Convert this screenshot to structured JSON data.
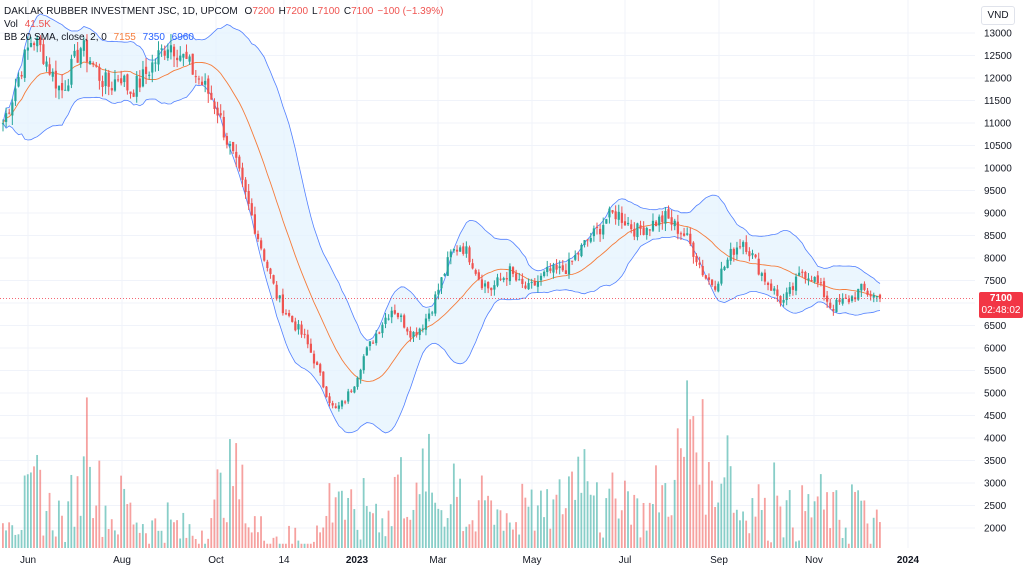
{
  "legend": {
    "symbol": "DAKLAK RUBBER INVESTMENT JSC, 1D, UPCOM",
    "open_label": "O",
    "open": "7200",
    "high_label": "H",
    "high": "7200",
    "low_label": "L",
    "low": "7100",
    "close_label": "C",
    "close": "7100",
    "change": "−100 (−1.39%)",
    "vol_label": "Vol",
    "vol_value": "41.5K",
    "bb_label": "BB 20 SMA, close, 2, 0",
    "bb_basis": "7155",
    "bb_upper": "7350",
    "bb_lower": "6960"
  },
  "price_axis": {
    "currency": "VND",
    "last_price": "7100",
    "countdown": "02:48:02"
  },
  "colors": {
    "up": "#26a69a",
    "down": "#ef5350",
    "basis": "#f57c3b",
    "band": "#2962ff",
    "band_fill": "#e3f2fd",
    "last_price": "#f23645"
  },
  "chart_data": {
    "type": "candlestick",
    "title": "DAKLAK RUBBER INVESTMENT JSC, 1D, UPCOM",
    "y_ticks": [
      2000,
      2500,
      3000,
      3500,
      4000,
      4500,
      5000,
      5500,
      6000,
      6500,
      7000,
      7500,
      8000,
      8500,
      9000,
      9500,
      10000,
      10500,
      11000,
      11500,
      12000,
      12500,
      13000
    ],
    "x_ticks": [
      "Jun",
      "Aug",
      "Oct",
      "14",
      "2023",
      "Mar",
      "May",
      "Jul",
      "Sep",
      "Nov",
      "2024"
    ],
    "ylim": [
      1600,
      13500
    ],
    "close_series": [
      11000,
      11600,
      12300,
      12900,
      12600,
      12100,
      11700,
      12200,
      12700,
      12400,
      12000,
      11800,
      12100,
      11700,
      11900,
      12200,
      12500,
      12800,
      12600,
      12300,
      12000,
      11700,
      11300,
      10600,
      10000,
      9300,
      8600,
      7900,
      7200,
      6800,
      6500,
      6200,
      5700,
      5100,
      4600,
      4800,
      5200,
      5800,
      6200,
      6600,
      6900,
      6600,
      6300,
      6500,
      6900,
      7500,
      8100,
      8300,
      8000,
      7500,
      7300,
      7500,
      7700,
      7400,
      7300,
      7500,
      7700,
      7700,
      7800,
      8100,
      8400,
      8600,
      8900,
      9000,
      8800,
      8600,
      8700,
      8800,
      8900,
      8700,
      8500,
      8100,
      7600,
      7400,
      7800,
      8200,
      8400,
      8000,
      7600,
      7300,
      7000,
      7300,
      7700,
      7600,
      7300,
      6900,
      7000,
      7100,
      7300,
      7200,
      7100
    ],
    "volume_samples": [
      2500,
      2200,
      2600,
      3000,
      2400,
      2300,
      2100,
      2700,
      4300,
      2900,
      2400,
      2200,
      2600,
      2300,
      2100,
      2000,
      2200,
      2000,
      1900,
      1900,
      2000,
      2300,
      2800,
      3200,
      2800,
      2100,
      1900,
      1900,
      1800,
      1700,
      1800,
      1700,
      1900,
      2600,
      2900,
      2300,
      2100,
      2500,
      2400,
      2200,
      3100,
      2700,
      2500,
      3300,
      2600,
      2500,
      3300,
      2200,
      2100,
      2600,
      2300,
      2400,
      2100,
      3000,
      2400,
      2300,
      2400,
      2600,
      3100,
      3500,
      3300,
      2200,
      2600,
      2900,
      2700,
      2300,
      2400,
      2800,
      2800,
      3600,
      4600,
      3900,
      3000,
      3000,
      3800,
      2400,
      2500,
      2600,
      2200,
      3100,
      2300,
      2200,
      2400,
      2600,
      2400,
      2300,
      2100,
      2700,
      2200,
      2000,
      1800
    ],
    "bb_basis_last": 7155,
    "bb_upper_last": 7350,
    "bb_lower_last": 6960
  }
}
